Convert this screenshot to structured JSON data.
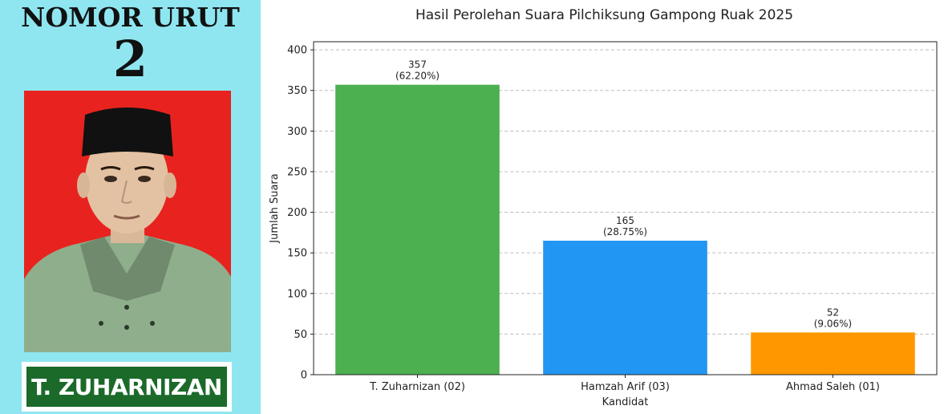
{
  "poster": {
    "heading": "NOMOR URUT",
    "number": "2",
    "candidate_name": "T. ZUHARNIZAN",
    "colors": {
      "background": "#8fe6f0",
      "photo_background": "#e8231f",
      "name_banner": "#1b6a2a"
    }
  },
  "chart_data": {
    "type": "bar",
    "title": "Hasil Perolehan Suara Pilchiksung Gampong Ruak 2025",
    "xlabel": "Kandidat",
    "ylabel": "Jumlah Suara",
    "categories": [
      "T. Zuharnizan (02)",
      "Hamzah Arif (03)",
      "Ahmad Saleh (01)"
    ],
    "values": [
      357,
      165,
      52
    ],
    "value_labels": [
      "357",
      "165",
      "52"
    ],
    "percent_labels": [
      "(62.20%)",
      "(28.75%)",
      "(9.06%)"
    ],
    "colors": [
      "#4caf50",
      "#2196f3",
      "#ff9800"
    ],
    "ylim": [
      0,
      410
    ],
    "yticks": [
      0,
      50,
      100,
      150,
      200,
      250,
      300,
      350,
      400
    ],
    "grid": "y-dashed",
    "legend": "none"
  }
}
